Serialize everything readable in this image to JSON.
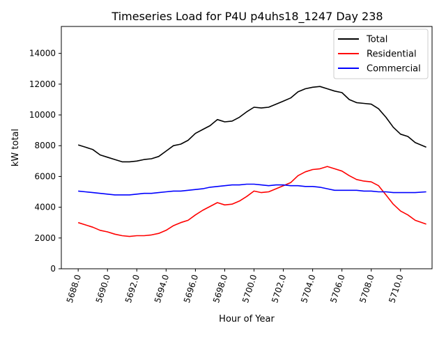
{
  "chart_data": {
    "type": "line",
    "title": "Timeseries Load for P4U p4uhs18_1247  Day 238",
    "xlabel": "Hour of Year",
    "ylabel": "kW total",
    "xlim": [
      5686.85,
      5712.15
    ],
    "ylim": [
      0,
      15750
    ],
    "xticks": [
      5688.0,
      5690.0,
      5692.0,
      5694.0,
      5696.0,
      5698.0,
      5700.0,
      5702.0,
      5704.0,
      5706.0,
      5708.0,
      5710.0
    ],
    "xtick_labels": [
      "5688.0",
      "5690.0",
      "5692.0",
      "5694.0",
      "5696.0",
      "5698.0",
      "5700.0",
      "5702.0",
      "5704.0",
      "5706.0",
      "5708.0",
      "5710.0"
    ],
    "yticks": [
      0,
      2000,
      4000,
      6000,
      8000,
      10000,
      12000,
      14000
    ],
    "ytick_labels": [
      "0",
      "2000",
      "4000",
      "6000",
      "8000",
      "10000",
      "12000",
      "14000"
    ],
    "legend_position": "top-right",
    "series": [
      {
        "name": "Total",
        "color": "#000000",
        "x": [
          5688.0,
          5688.5,
          5689.0,
          5689.5,
          5690.0,
          5690.5,
          5691.0,
          5691.5,
          5692.0,
          5692.5,
          5693.0,
          5693.5,
          5694.0,
          5694.5,
          5695.0,
          5695.5,
          5696.0,
          5696.5,
          5697.0,
          5697.5,
          5698.0,
          5698.5,
          5699.0,
          5699.5,
          5700.0,
          5700.5,
          5701.0,
          5701.5,
          5702.0,
          5702.5,
          5703.0,
          5703.5,
          5704.0,
          5704.5,
          5705.0,
          5705.5,
          5706.0,
          5706.5,
          5707.0,
          5707.5,
          5708.0,
          5708.5,
          5709.0,
          5709.5,
          5710.0,
          5710.5,
          5711.0,
          5711.75
        ],
        "values": [
          8050,
          7900,
          7750,
          7400,
          7250,
          7100,
          6950,
          6950,
          7000,
          7100,
          7150,
          7300,
          7650,
          8000,
          8100,
          8350,
          8800,
          9050,
          9300,
          9700,
          9550,
          9600,
          9850,
          10200,
          10500,
          10450,
          10500,
          10700,
          10900,
          11100,
          11500,
          11700,
          11800,
          11850,
          11700,
          11550,
          11450,
          11000,
          10800,
          10750,
          10700,
          10400,
          9850,
          9200,
          8750,
          8600,
          8200,
          7900
        ]
      },
      {
        "name": "Residential",
        "color": "#ff0000",
        "x": [
          5688.0,
          5688.5,
          5689.0,
          5689.5,
          5690.0,
          5690.5,
          5691.0,
          5691.5,
          5692.0,
          5692.5,
          5693.0,
          5693.5,
          5694.0,
          5694.5,
          5695.0,
          5695.5,
          5696.0,
          5696.5,
          5697.0,
          5697.5,
          5698.0,
          5698.5,
          5699.0,
          5699.5,
          5700.0,
          5700.5,
          5701.0,
          5701.5,
          5702.0,
          5702.5,
          5703.0,
          5703.5,
          5704.0,
          5704.5,
          5705.0,
          5705.5,
          5706.0,
          5706.5,
          5707.0,
          5707.5,
          5708.0,
          5708.5,
          5709.0,
          5709.5,
          5710.0,
          5710.5,
          5711.0,
          5711.75
        ],
        "values": [
          3000,
          2850,
          2700,
          2500,
          2400,
          2250,
          2150,
          2100,
          2150,
          2150,
          2200,
          2300,
          2500,
          2800,
          3000,
          3150,
          3500,
          3800,
          4050,
          4300,
          4150,
          4200,
          4400,
          4700,
          5050,
          4950,
          5000,
          5200,
          5400,
          5600,
          6050,
          6300,
          6450,
          6500,
          6650,
          6500,
          6350,
          6050,
          5800,
          5700,
          5650,
          5400,
          4800,
          4200,
          3750,
          3500,
          3150,
          2900
        ]
      },
      {
        "name": "Commercial",
        "color": "#0000ff",
        "x": [
          5688.0,
          5688.5,
          5689.0,
          5689.5,
          5690.0,
          5690.5,
          5691.0,
          5691.5,
          5692.0,
          5692.5,
          5693.0,
          5693.5,
          5694.0,
          5694.5,
          5695.0,
          5695.5,
          5696.0,
          5696.5,
          5697.0,
          5697.5,
          5698.0,
          5698.5,
          5699.0,
          5699.5,
          5700.0,
          5700.5,
          5701.0,
          5701.5,
          5702.0,
          5702.5,
          5703.0,
          5703.5,
          5704.0,
          5704.5,
          5705.0,
          5705.5,
          5706.0,
          5706.5,
          5707.0,
          5707.5,
          5708.0,
          5708.5,
          5709.0,
          5709.5,
          5710.0,
          5710.5,
          5711.0,
          5711.75
        ],
        "values": [
          5050,
          5000,
          4950,
          4900,
          4850,
          4800,
          4800,
          4800,
          4850,
          4900,
          4900,
          4950,
          5000,
          5050,
          5050,
          5100,
          5150,
          5200,
          5300,
          5350,
          5400,
          5450,
          5450,
          5500,
          5500,
          5450,
          5400,
          5450,
          5450,
          5400,
          5400,
          5350,
          5350,
          5300,
          5200,
          5100,
          5100,
          5100,
          5100,
          5050,
          5050,
          5000,
          5000,
          4950,
          4950,
          4950,
          4950,
          5000
        ]
      }
    ]
  }
}
